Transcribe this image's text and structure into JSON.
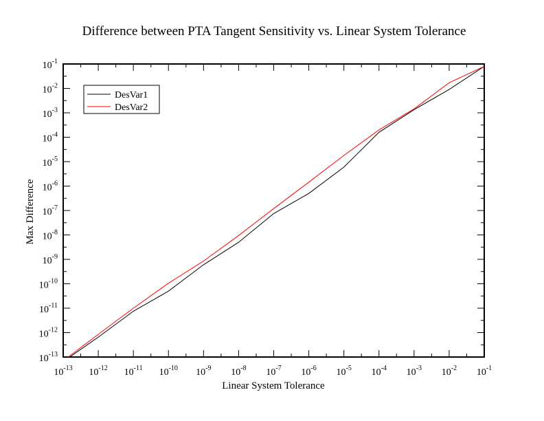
{
  "chart_data": {
    "type": "line",
    "title": "Difference between PTA Tangent Sensitivity vs.  Linear System Tolerance",
    "xlabel": "Linear System Tolerance",
    "ylabel": "Max Difference",
    "x_scale": "log",
    "y_scale": "log",
    "xlim": [
      1e-13,
      0.1
    ],
    "ylim": [
      1e-13,
      0.1
    ],
    "x_ticks": [
      "10^-13",
      "10^-12",
      "10^-11",
      "10^-10",
      "10^-9",
      "10^-8",
      "10^-7",
      "10^-6",
      "10^-5",
      "10^-4",
      "10^-3",
      "10^-2",
      "10^-1"
    ],
    "y_ticks": [
      "10^-13",
      "10^-12",
      "10^-11",
      "10^-10",
      "10^-9",
      "10^-8",
      "10^-7",
      "10^-6",
      "10^-5",
      "10^-4",
      "10^-3",
      "10^-2",
      "10^-1"
    ],
    "grid": false,
    "legend_position": "top-left",
    "x": [
      1e-13,
      1e-12,
      1e-11,
      1e-10,
      1e-09,
      1e-08,
      1e-07,
      1e-06,
      1e-05,
      0.0001,
      0.001,
      0.01,
      0.1
    ],
    "series": [
      {
        "name": "DesVar1",
        "color": "#000000",
        "values": [
          6.5e-14,
          6.5e-13,
          7.5e-12,
          5e-11,
          6e-10,
          5e-09,
          7.5e-08,
          5e-07,
          6e-06,
          0.00016,
          0.00135,
          0.009,
          0.08
        ]
      },
      {
        "name": "DesVar2",
        "color": "#ff0000",
        "values": [
          7e-14,
          8.5e-13,
          1e-11,
          1.05e-10,
          8.5e-10,
          9.5e-09,
          1.2e-07,
          1.45e-06,
          1.8e-05,
          0.0002,
          0.00145,
          0.017,
          0.08
        ]
      }
    ]
  }
}
